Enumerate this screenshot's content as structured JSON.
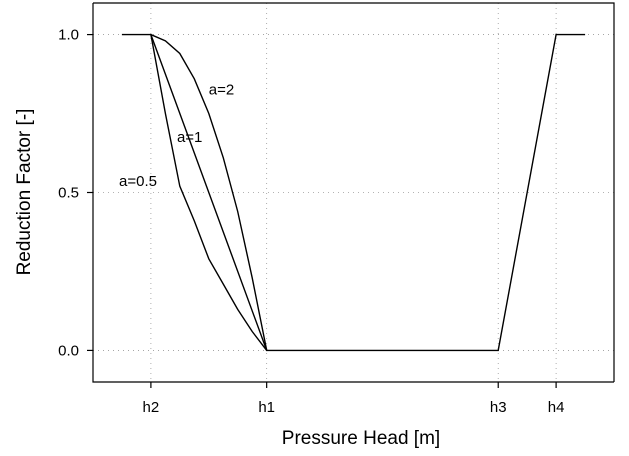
{
  "chart_data": {
    "type": "line",
    "title": "",
    "xlabel": "Pressure Head [m]",
    "ylabel": "Reduction Factor [-]",
    "x_ticks": [
      {
        "label": "h2",
        "value": 2
      },
      {
        "label": "h1",
        "value": 4
      },
      {
        "label": "h3",
        "value": 8
      },
      {
        "label": "h4",
        "value": 9
      }
    ],
    "y_ticks": [
      "0.0",
      "0.5",
      "1.0"
    ],
    "xlim": [
      1,
      10
    ],
    "ylim": [
      -0.1,
      1.1
    ],
    "grid": true,
    "series": [
      {
        "name": "a=2",
        "x": [
          1.5,
          2.0,
          2.25,
          2.5,
          2.75,
          3.0,
          3.25,
          3.5,
          3.75,
          4.0,
          8.0,
          9.0,
          9.5
        ],
        "y": [
          1.0,
          1.0,
          0.98,
          0.94,
          0.86,
          0.75,
          0.61,
          0.44,
          0.23,
          0.0,
          0.0,
          1.0,
          1.0
        ]
      },
      {
        "name": "a=1",
        "x": [
          2.0,
          4.0
        ],
        "y": [
          1.0,
          0.0
        ]
      },
      {
        "name": "a=0.5",
        "x": [
          2.0,
          2.25,
          2.5,
          2.75,
          3.0,
          3.25,
          3.5,
          3.75,
          4.0
        ],
        "y": [
          1.0,
          0.75,
          0.52,
          0.41,
          0.29,
          0.21,
          0.13,
          0.06,
          0.0
        ]
      }
    ],
    "annotations": [
      {
        "text": "a=2",
        "x": 3.0,
        "y": 0.81
      },
      {
        "text": "a=1",
        "x": 2.45,
        "y": 0.66
      },
      {
        "text": "a=0.5",
        "x": 1.45,
        "y": 0.52
      }
    ]
  }
}
